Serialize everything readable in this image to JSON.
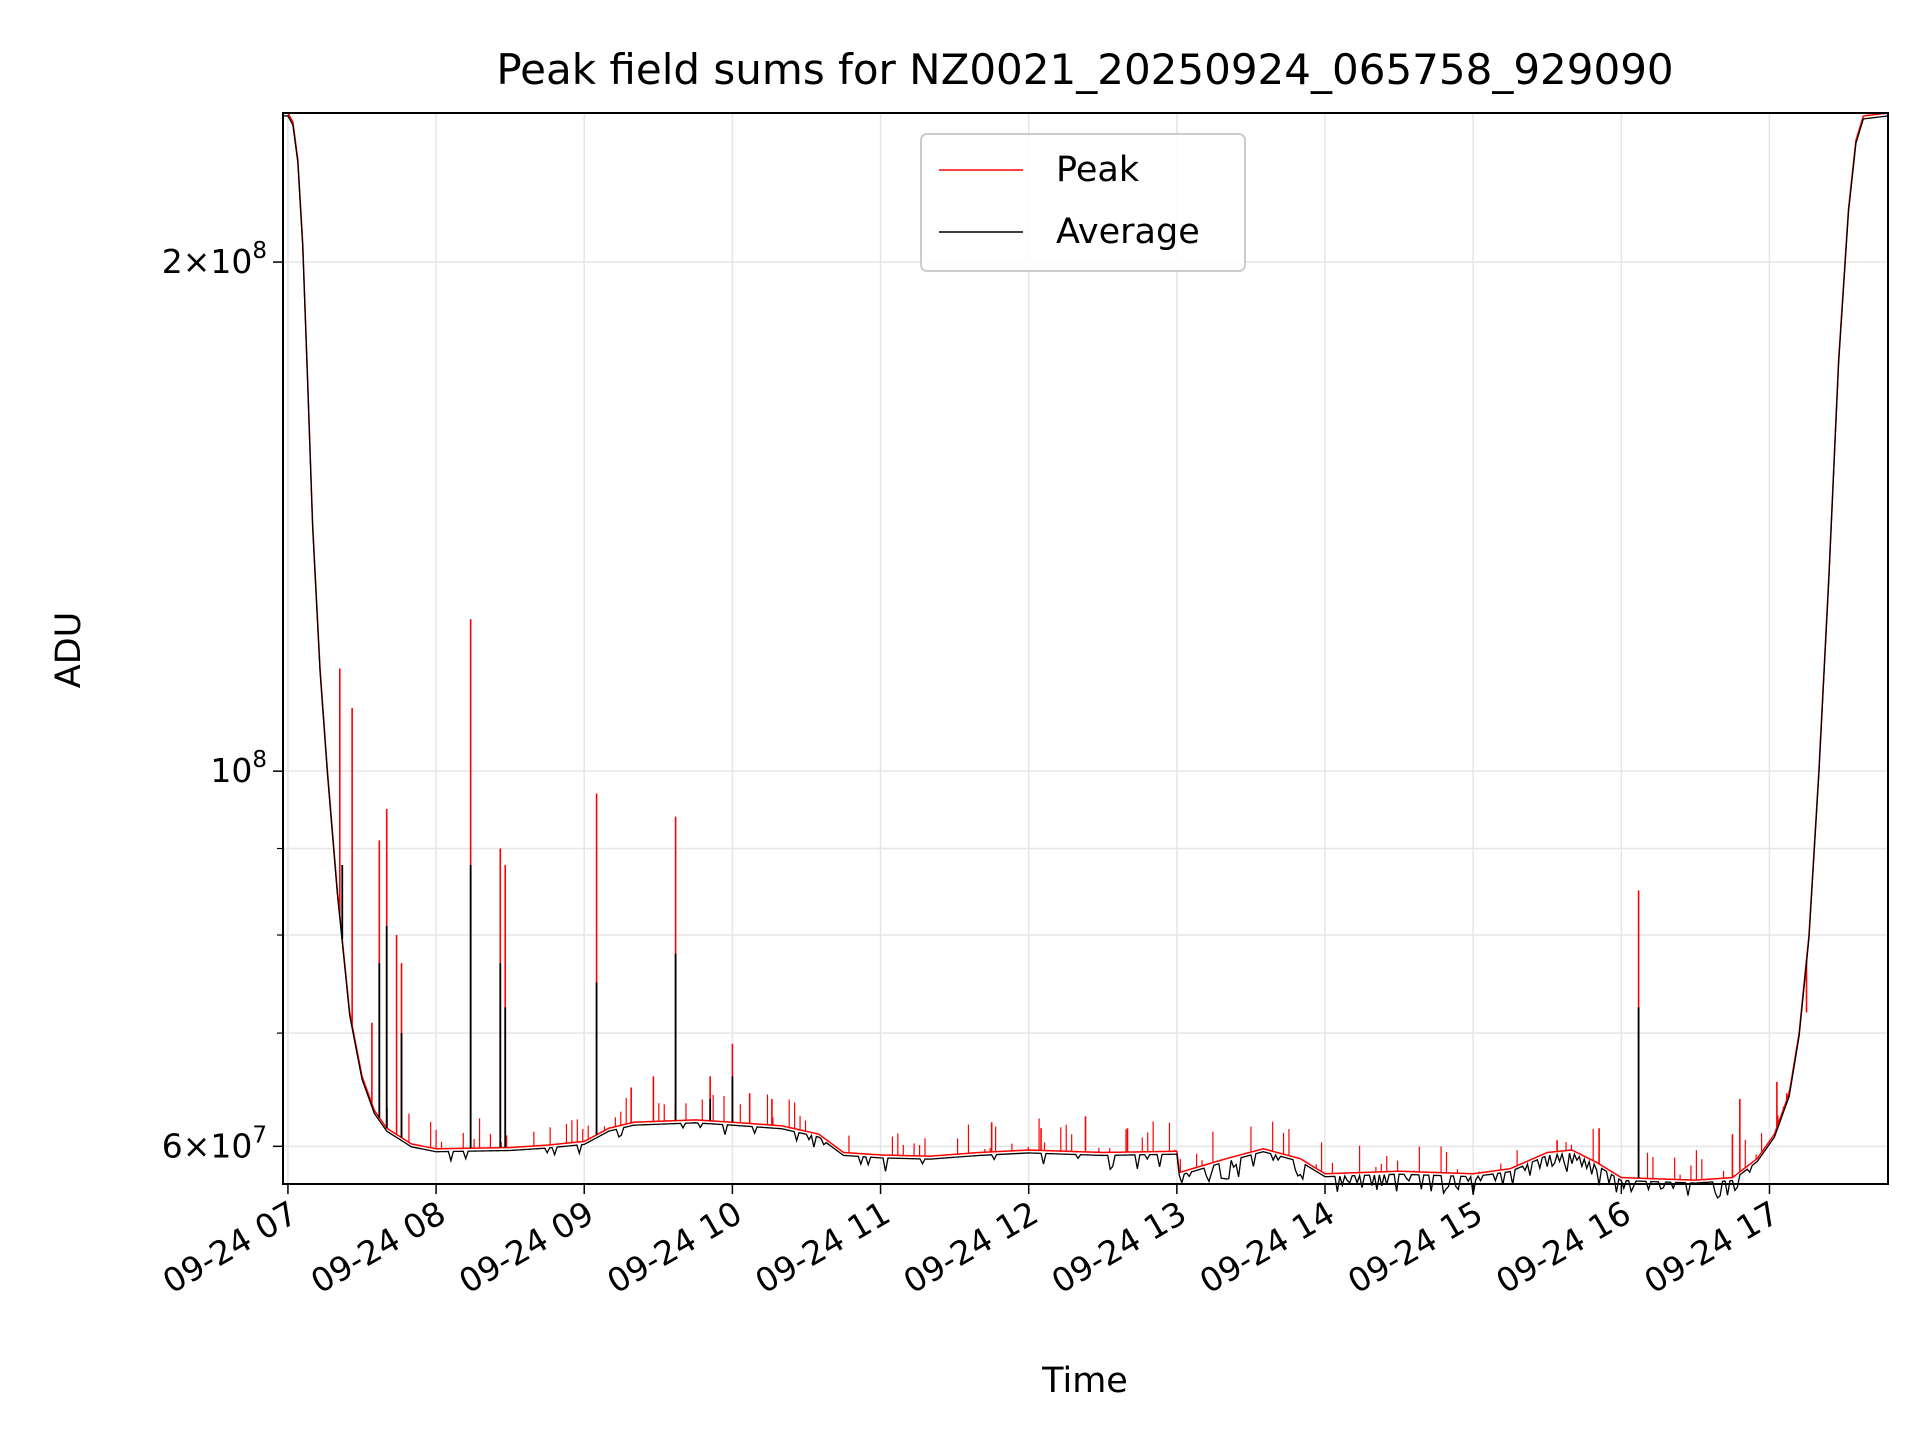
{
  "chart_data": {
    "type": "line",
    "title": "Peak field sums for NZ0021_20250924_065758_929090",
    "xlabel": "Time",
    "ylabel": "ADU",
    "yscale": "log",
    "ylim": [
      57000000,
      245000000
    ],
    "xlim": [
      "2025-09-24 06:58",
      "2025-09-24 17:48"
    ],
    "grid": true,
    "legend_position": "upper-center",
    "x_ticks": [
      "09-24 07",
      "09-24 08",
      "09-24 09",
      "09-24 10",
      "09-24 11",
      "09-24 12",
      "09-24 13",
      "09-24 14",
      "09-24 15",
      "09-24 16",
      "09-24 17"
    ],
    "y_major_ticks": [
      {
        "value": 60000000,
        "mantissa": "6",
        "exp": "7"
      },
      {
        "value": 100000000,
        "mantissa": "",
        "exp": "8"
      },
      {
        "value": 200000000,
        "mantissa": "2",
        "exp": "8"
      }
    ],
    "y_minor_ticks": [
      70000000,
      80000000,
      90000000,
      300000000
    ],
    "series": [
      {
        "name": "Peak",
        "color": "#ff0000",
        "baseline": [
          [
            "06:58",
            245000000
          ],
          [
            "07:00",
            245000000
          ],
          [
            "07:02",
            242000000
          ],
          [
            "07:04",
            230000000
          ],
          [
            "07:06",
            205000000
          ],
          [
            "07:08",
            170000000
          ],
          [
            "07:10",
            140000000
          ],
          [
            "07:13",
            115000000
          ],
          [
            "07:16",
            100000000
          ],
          [
            "07:20",
            85000000
          ],
          [
            "07:25",
            72000000
          ],
          [
            "07:30",
            66000000
          ],
          [
            "07:35",
            63000000
          ],
          [
            "07:40",
            61500000
          ],
          [
            "07:50",
            60200000
          ],
          [
            "08:00",
            59800000
          ],
          [
            "08:30",
            59900000
          ],
          [
            "08:45",
            60100000
          ],
          [
            "09:00",
            60400000
          ],
          [
            "09:10",
            61500000
          ],
          [
            "09:20",
            62000000
          ],
          [
            "09:45",
            62200000
          ],
          [
            "10:00",
            62000000
          ],
          [
            "10:20",
            61700000
          ],
          [
            "10:35",
            61000000
          ],
          [
            "10:45",
            59500000
          ],
          [
            "11:00",
            59300000
          ],
          [
            "11:20",
            59200000
          ],
          [
            "11:40",
            59500000
          ],
          [
            "12:00",
            59700000
          ],
          [
            "12:30",
            59500000
          ],
          [
            "13:00",
            59600000
          ],
          [
            "13:01",
            57900000
          ],
          [
            "13:20",
            59000000
          ],
          [
            "13:35",
            59800000
          ],
          [
            "13:50",
            59000000
          ],
          [
            "14:00",
            57800000
          ],
          [
            "14:30",
            58000000
          ],
          [
            "15:00",
            57800000
          ],
          [
            "15:15",
            58200000
          ],
          [
            "15:30",
            59500000
          ],
          [
            "15:40",
            59700000
          ],
          [
            "15:50",
            58700000
          ],
          [
            "16:00",
            57500000
          ],
          [
            "16:30",
            57300000
          ],
          [
            "16:45",
            57500000
          ],
          [
            "16:55",
            59000000
          ],
          [
            "17:02",
            61000000
          ],
          [
            "17:08",
            64500000
          ],
          [
            "17:12",
            70000000
          ],
          [
            "17:16",
            80000000
          ],
          [
            "17:20",
            100000000
          ],
          [
            "17:24",
            130000000
          ],
          [
            "17:28",
            175000000
          ],
          [
            "17:32",
            215000000
          ],
          [
            "17:35",
            236000000
          ],
          [
            "17:38",
            244000000
          ],
          [
            "17:48",
            245000000
          ]
        ],
        "spikes": [
          [
            "07:21",
            115000000
          ],
          [
            "07:26",
            109000000
          ],
          [
            "07:34",
            71000000
          ],
          [
            "07:37",
            91000000
          ],
          [
            "07:40",
            95000000
          ],
          [
            "07:44",
            80000000
          ],
          [
            "07:46",
            77000000
          ],
          [
            "08:14",
            123000000
          ],
          [
            "08:26",
            90000000
          ],
          [
            "08:28",
            88000000
          ],
          [
            "09:05",
            97000000
          ],
          [
            "09:19",
            65000000
          ],
          [
            "09:28",
            66000000
          ],
          [
            "09:37",
            94000000
          ],
          [
            "09:51",
            66000000
          ],
          [
            "10:00",
            69000000
          ],
          [
            "10:07",
            64500000
          ],
          [
            "10:16",
            64000000
          ],
          [
            "11:45",
            62000000
          ],
          [
            "12:05",
            61500000
          ],
          [
            "12:23",
            62500000
          ],
          [
            "12:40",
            61500000
          ],
          [
            "15:34",
            60500000
          ],
          [
            "15:51",
            61500000
          ],
          [
            "16:07",
            85000000
          ],
          [
            "16:45",
            61000000
          ],
          [
            "16:48",
            64000000
          ],
          [
            "17:03",
            65500000
          ],
          [
            "17:07",
            64500000
          ],
          [
            "17:15",
            72000000
          ]
        ]
      },
      {
        "name": "Average",
        "color": "#000000",
        "spikes": [
          [
            "07:22",
            88000000
          ],
          [
            "07:37",
            77000000
          ],
          [
            "07:40",
            81000000
          ],
          [
            "07:46",
            70000000
          ],
          [
            "08:14",
            88000000
          ],
          [
            "08:26",
            77000000
          ],
          [
            "08:28",
            72500000
          ],
          [
            "09:05",
            75000000
          ],
          [
            "09:37",
            78000000
          ],
          [
            "09:51",
            64000000
          ],
          [
            "10:00",
            66000000
          ],
          [
            "16:07",
            72500000
          ]
        ]
      }
    ]
  }
}
